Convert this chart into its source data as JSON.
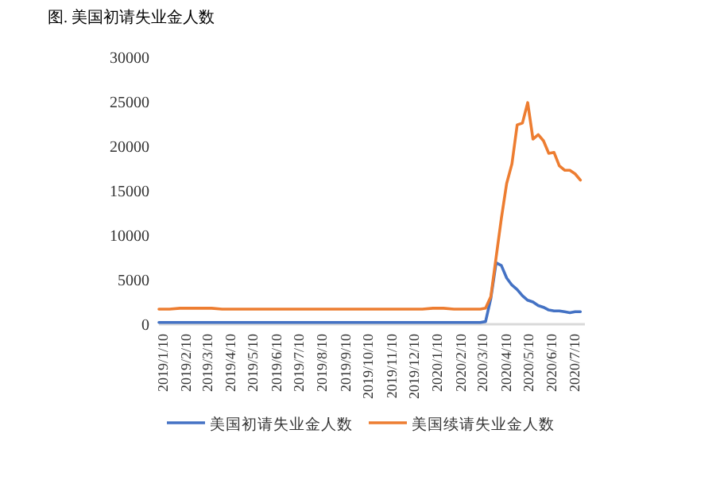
{
  "chart_data": {
    "type": "line",
    "title": "图. 美国初请失业金人数",
    "x": [
      "2019-01-05",
      "2019-01-19",
      "2019-02-02",
      "2019-02-16",
      "2019-03-02",
      "2019-03-16",
      "2019-03-30",
      "2019-04-13",
      "2019-04-27",
      "2019-05-11",
      "2019-05-25",
      "2019-06-08",
      "2019-06-22",
      "2019-07-06",
      "2019-07-20",
      "2019-08-03",
      "2019-08-17",
      "2019-08-31",
      "2019-09-14",
      "2019-09-28",
      "2019-10-12",
      "2019-10-26",
      "2019-11-09",
      "2019-11-23",
      "2019-12-07",
      "2019-12-21",
      "2020-01-04",
      "2020-01-18",
      "2020-02-01",
      "2020-02-15",
      "2020-02-29",
      "2020-03-07",
      "2020-03-14",
      "2020-03-21",
      "2020-03-28",
      "2020-04-04",
      "2020-04-11",
      "2020-04-18",
      "2020-04-25",
      "2020-05-02",
      "2020-05-09",
      "2020-05-16",
      "2020-05-23",
      "2020-05-30",
      "2020-06-06",
      "2020-06-13",
      "2020-06-20",
      "2020-06-27",
      "2020-07-04",
      "2020-07-11",
      "2020-07-18"
    ],
    "series": [
      {
        "name": "美国初请失业金人数",
        "color": "#4472c4",
        "values": [
          200,
          200,
          200,
          200,
          200,
          200,
          200,
          200,
          200,
          200,
          200,
          200,
          200,
          200,
          200,
          200,
          200,
          200,
          200,
          200,
          200,
          200,
          200,
          200,
          200,
          200,
          200,
          200,
          200,
          200,
          200,
          200,
          300,
          2900,
          6900,
          6600,
          5200,
          4400,
          3900,
          3200,
          2700,
          2500,
          2100,
          1900,
          1600,
          1500,
          1500,
          1400,
          1300,
          1400,
          1400
        ]
      },
      {
        "name": "美国续请失业金人数",
        "color": "#ed7d31",
        "values": [
          1700,
          1700,
          1800,
          1800,
          1800,
          1800,
          1700,
          1700,
          1700,
          1700,
          1700,
          1700,
          1700,
          1700,
          1700,
          1700,
          1700,
          1700,
          1700,
          1700,
          1700,
          1700,
          1700,
          1700,
          1700,
          1700,
          1800,
          1800,
          1700,
          1700,
          1700,
          1700,
          1800,
          3100,
          7500,
          11900,
          15800,
          18000,
          22400,
          22600,
          24900,
          20800,
          21300,
          20600,
          19200,
          19300,
          17800,
          17300,
          17300,
          16900,
          16200
        ]
      }
    ],
    "xlim": [
      "2019-01-05",
      "2020-07-24"
    ],
    "xticks": [
      {
        "value": "2019-01-10",
        "label": "2019/1/10"
      },
      {
        "value": "2019-02-10",
        "label": "2019/2/10"
      },
      {
        "value": "2019-03-10",
        "label": "2019/3/10"
      },
      {
        "value": "2019-04-10",
        "label": "2019/4/10"
      },
      {
        "value": "2019-05-10",
        "label": "2019/5/10"
      },
      {
        "value": "2019-06-10",
        "label": "2019/6/10"
      },
      {
        "value": "2019-07-10",
        "label": "2019/7/10"
      },
      {
        "value": "2019-08-10",
        "label": "2019/8/10"
      },
      {
        "value": "2019-09-10",
        "label": "2019/9/10"
      },
      {
        "value": "2019-10-10",
        "label": "2019/10/10"
      },
      {
        "value": "2019-11-10",
        "label": "2019/11/10"
      },
      {
        "value": "2019-12-10",
        "label": "2019/12/10"
      },
      {
        "value": "2020-01-10",
        "label": "2020/1/10"
      },
      {
        "value": "2020-02-10",
        "label": "2020/2/10"
      },
      {
        "value": "2020-03-10",
        "label": "2020/3/10"
      },
      {
        "value": "2020-04-10",
        "label": "2020/4/10"
      },
      {
        "value": "2020-05-10",
        "label": "2020/5/10"
      },
      {
        "value": "2020-06-10",
        "label": "2020/6/10"
      },
      {
        "value": "2020-07-10",
        "label": "2020/7/10"
      }
    ],
    "ylim": [
      0,
      30000
    ],
    "yticks": [
      0,
      5000,
      10000,
      15000,
      20000,
      25000,
      30000
    ],
    "grid": false,
    "legend": "bottom",
    "marker": "none",
    "line_style": "solid"
  }
}
